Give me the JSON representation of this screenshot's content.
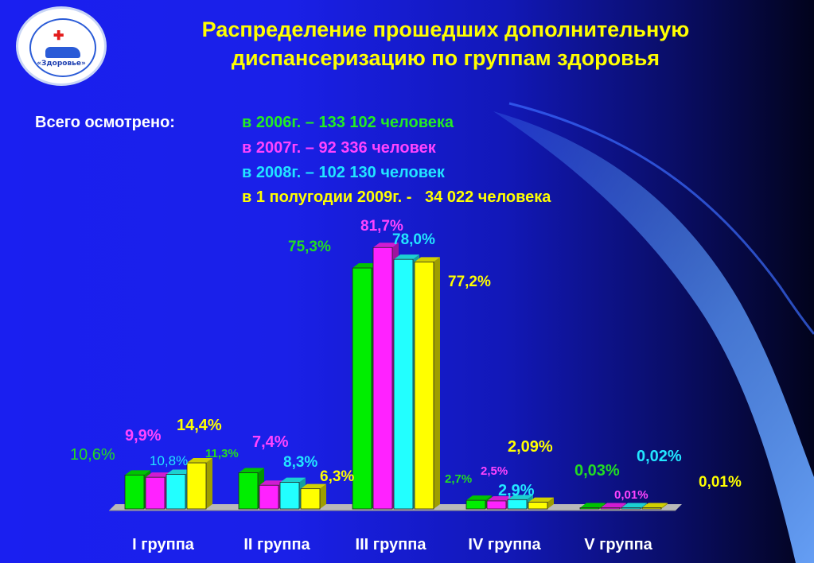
{
  "title_line1": "Распределение прошедших дополнительную",
  "title_line2": "диспансеризацию по группам здоровья",
  "summary": {
    "label": "Всего осмотрено:",
    "lines": [
      "в 2006г. – 133 102 человека",
      "в 2007г. – 92 336 человек",
      "в 2008г. – 102 130 человек",
      "в 1 полугодии 2009г. -   34 022 человека"
    ]
  },
  "logo": {
    "text": "«Здоровье»"
  },
  "colors": {
    "text_white": "#ffffff",
    "title_yellow": "#ffff00",
    "series": [
      "#00ee00",
      "#ff22ff",
      "#22ffff",
      "#ffff00"
    ],
    "series_label": [
      "#22dd22",
      "#ff44ff",
      "#22e6ff",
      "#ffff00"
    ],
    "floor": "#b9b9b9"
  },
  "chart_data": {
    "type": "bar",
    "categories": [
      "I группа",
      "II группа",
      "III группа",
      "IV группа",
      "V группа"
    ],
    "series": [
      {
        "values": [
          10.6,
          11.3,
          75.3,
          2.7,
          0.03
        ],
        "labels": [
          "10,6%",
          "11,3%",
          "75,3%",
          "2,7%",
          "0,03%"
        ]
      },
      {
        "values": [
          9.9,
          7.4,
          81.7,
          2.5,
          0.01
        ],
        "labels": [
          "9,9%",
          "7,4%",
          "81,7%",
          "2,5%",
          "0,01%"
        ]
      },
      {
        "values": [
          10.8,
          8.3,
          78.0,
          2.9,
          0.02
        ],
        "labels": [
          "10,8%",
          "8,3%",
          "78,0%",
          "2,9%",
          "0,02%"
        ]
      },
      {
        "values": [
          14.4,
          6.3,
          77.2,
          2.09,
          0.01
        ],
        "labels": [
          "14,4%",
          "6,3%",
          "77,2%",
          "2,09%",
          "0,01%"
        ]
      }
    ],
    "ylim": [
      0,
      85
    ],
    "grid": false,
    "legend": "none"
  }
}
